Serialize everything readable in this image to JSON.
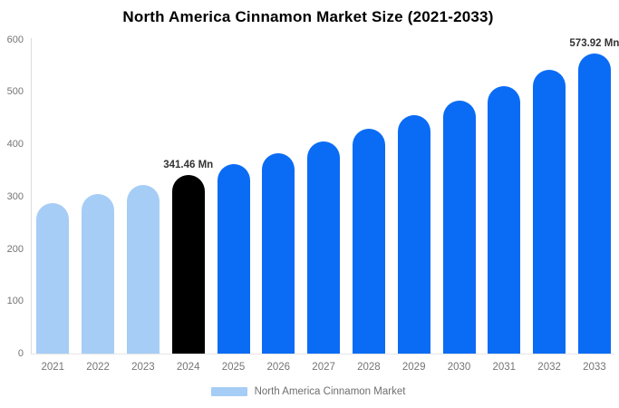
{
  "title": "North America Cinnamon Market Size (2021-2033)",
  "legend": {
    "label": "North America Cinnamon Market"
  },
  "colors": {
    "historical_bar": "#a6cdf5",
    "base_year_bar": "#000000",
    "forecast_bar": "#0a6cf5",
    "axis_line": "#dcdcdc",
    "baseline": "#e6e6e6",
    "tick_label": "#757575",
    "annotation_text": "#333333",
    "background": "#ffffff"
  },
  "chart_data": {
    "type": "bar",
    "title": "North America Cinnamon Market Size (2021-2033)",
    "unit": "Mn",
    "categories": [
      "2021",
      "2022",
      "2023",
      "2024",
      "2025",
      "2026",
      "2027",
      "2028",
      "2029",
      "2030",
      "2031",
      "2032",
      "2033"
    ],
    "values": [
      287.2,
      304.3,
      322.3,
      341.46,
      361.7,
      383.2,
      406.0,
      430.1,
      455.6,
      482.7,
      511.4,
      541.8,
      573.92
    ],
    "bar_roles": [
      "historical",
      "historical",
      "historical",
      "base",
      "forecast",
      "forecast",
      "forecast",
      "forecast",
      "forecast",
      "forecast",
      "forecast",
      "forecast",
      "forecast"
    ],
    "labeled_points": [
      {
        "category": "2024",
        "label": "341.46 Mn"
      },
      {
        "category": "2033",
        "label": "573.92 Mn"
      }
    ],
    "ylim": [
      0,
      600
    ],
    "yticks": [
      0,
      100,
      200,
      300,
      400,
      500,
      600
    ],
    "grid": false,
    "legend_position": "bottom",
    "legend_entries": [
      "North America Cinnamon Market"
    ]
  }
}
